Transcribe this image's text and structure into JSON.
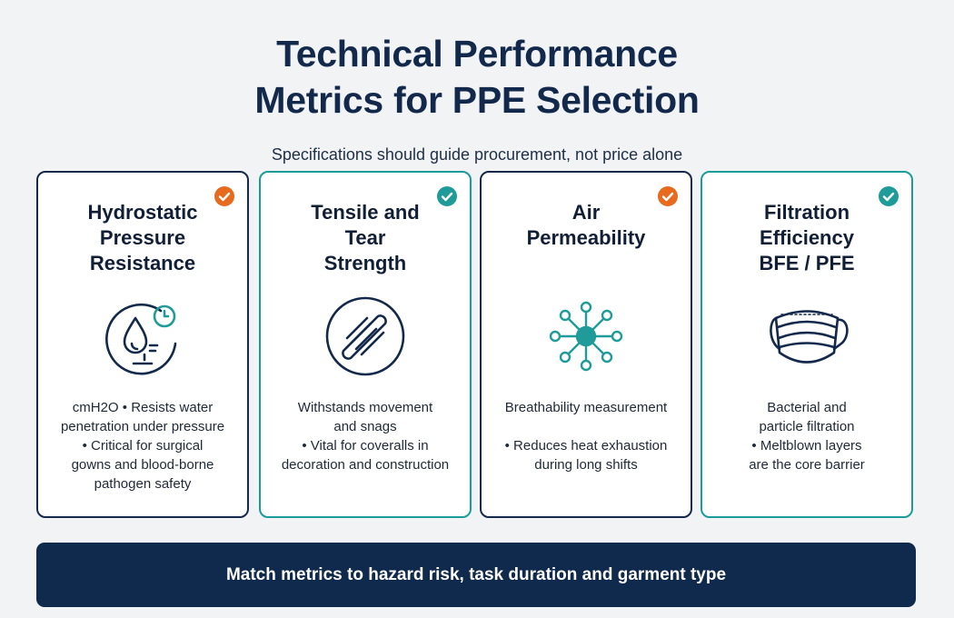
{
  "header": {
    "title_line1": "Technical Performance",
    "title_line2": "Metrics for PPE Selection",
    "subtitle": "Specifications should guide procurement, not price alone"
  },
  "cards": [
    {
      "title_lines": [
        "Hydrostatic",
        "Pressure",
        "Resistance"
      ],
      "desc_lines": [
        "cmH2O • Resists water",
        "penetration under pressure",
        "• Critical for surgical",
        "gowns and blood-borne",
        "pathogen safety"
      ],
      "icon": "water-drop-gauge-icon",
      "check_color": "#e86a1e",
      "border_color": "#14294b"
    },
    {
      "title_lines": [
        "Tensile and",
        "Tear",
        "Strength"
      ],
      "desc_lines": [
        "Withstands movement",
        "and snags",
        "• Vital for coveralls in",
        "decoration and construction"
      ],
      "icon": "fabric-strands-icon",
      "check_color": "#1f9c99",
      "border_color": "#1a9c9a"
    },
    {
      "title_lines": [
        "Air",
        "Permeability"
      ],
      "desc_lines": [
        "Breathability measurement",
        "",
        "• Reduces heat exhaustion",
        "during long shifts"
      ],
      "icon": "airflow-network-icon",
      "check_color": "#e86a1e",
      "border_color": "#14294b"
    },
    {
      "title_lines": [
        "Filtration",
        "Efficiency",
        "BFE / PFE"
      ],
      "desc_lines": [
        "Bacterial and",
        "particle filtration",
        "• Meltblown layers",
        "are the core barrier"
      ],
      "icon": "face-mask-icon",
      "check_color": "#1f9c99",
      "border_color": "#1a9c9a"
    }
  ],
  "footer": {
    "text": "Match metrics to hazard risk, task duration and garment type"
  }
}
